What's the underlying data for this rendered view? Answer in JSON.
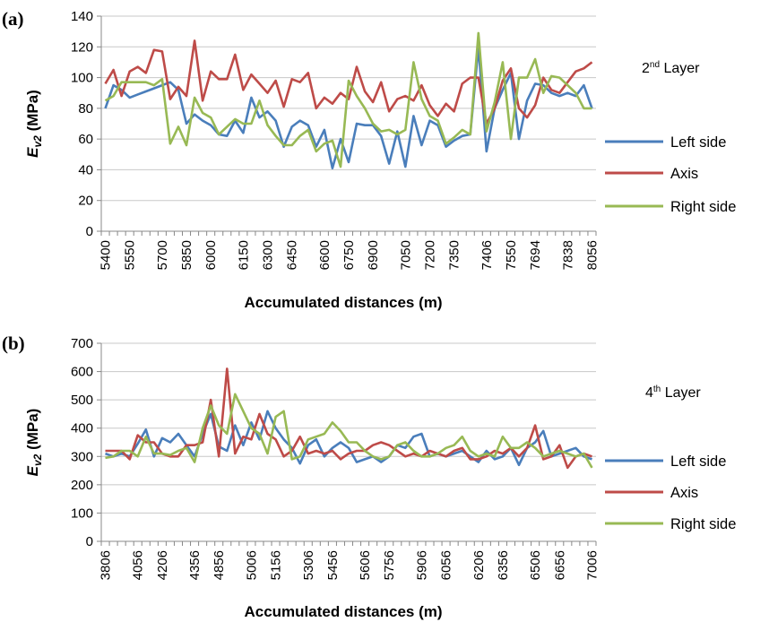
{
  "colors": {
    "left": "#4a7ebb",
    "axis": "#be4b48",
    "right": "#98b954",
    "grid": "#c8c8c8"
  },
  "chart_data": [
    {
      "type": "line",
      "panel": "(a)",
      "annotation": {
        "pre": "2",
        "sup": "nd",
        "post": " Layer"
      },
      "xlabel": "Accumulated distances (m)",
      "ylabel": {
        "main": "E",
        "sub": "v2",
        "unit": " (MPa)"
      },
      "ylim": [
        0,
        140
      ],
      "yticks": [
        "0",
        "20",
        "40",
        "60",
        "80",
        "100",
        "120",
        "140"
      ],
      "n_points": 61,
      "x_tick_labels": [
        "5400",
        "5550",
        "5700",
        "5850",
        "6000",
        "6150",
        "6300",
        "6450",
        "6600",
        "6750",
        "6900",
        "7050",
        "7200",
        "7350",
        "7406",
        "7550",
        "7694",
        "7838",
        "8056"
      ],
      "legend": [
        "Left side",
        "Axis",
        "Right side"
      ],
      "grid": true,
      "series": [
        {
          "name": "Left side",
          "values": [
            80,
            95,
            92,
            87,
            89,
            91,
            93,
            95,
            97,
            92,
            70,
            76,
            72,
            69,
            63,
            62,
            72,
            64,
            87,
            74,
            78,
            72,
            55,
            68,
            72,
            69,
            55,
            66,
            41,
            60,
            45,
            70,
            69,
            69,
            62,
            44,
            65,
            42,
            75,
            56,
            72,
            69,
            55,
            59,
            62,
            63,
            120,
            52,
            80,
            92,
            103,
            60,
            85,
            96,
            95,
            90,
            88,
            90,
            88,
            95,
            80
          ]
        },
        {
          "name": "Axis",
          "values": [
            96,
            105,
            88,
            104,
            107,
            103,
            118,
            117,
            86,
            94,
            88,
            124,
            85,
            104,
            99,
            99,
            115,
            92,
            102,
            96,
            90,
            98,
            81,
            99,
            97,
            103,
            80,
            87,
            83,
            90,
            86,
            107,
            91,
            84,
            97,
            78,
            86,
            88,
            85,
            95,
            82,
            75,
            83,
            78,
            96,
            100,
            100,
            70,
            80,
            98,
            106,
            80,
            74,
            82,
            100,
            92,
            90,
            97,
            104,
            106,
            110
          ]
        },
        {
          "name": "Right side",
          "values": [
            85,
            88,
            97,
            97,
            97,
            97,
            95,
            99,
            57,
            68,
            56,
            87,
            77,
            74,
            63,
            68,
            73,
            70,
            70,
            85,
            69,
            62,
            56,
            56,
            62,
            66,
            52,
            57,
            59,
            42,
            98,
            88,
            80,
            70,
            65,
            66,
            63,
            66,
            110,
            86,
            75,
            72,
            57,
            61,
            66,
            63,
            129,
            65,
            84,
            110,
            60,
            100,
            100,
            112,
            90,
            101,
            100,
            95,
            90,
            80,
            80
          ]
        }
      ]
    },
    {
      "type": "line",
      "panel": "(b)",
      "annotation": {
        "pre": "4",
        "sup": "th",
        "post": " Layer"
      },
      "xlabel": "Accumulated distances (m)",
      "ylabel": {
        "main": "E",
        "sub": "v2",
        "unit": " (MPa)"
      },
      "ylim": [
        0,
        700
      ],
      "yticks": [
        "0",
        "100",
        "200",
        "300",
        "400",
        "500",
        "600",
        "700"
      ],
      "n_points": 61,
      "x_tick_labels": [
        "3806",
        "4056",
        "4206",
        "4356",
        "4856",
        "5006",
        "5156",
        "5306",
        "5456",
        "5606",
        "5756",
        "5906",
        "6056",
        "6206",
        "6356",
        "6506",
        "6656",
        "7006"
      ],
      "legend": [
        "Left side",
        "Axis",
        "Right side"
      ],
      "grid": true,
      "series": [
        {
          "name": "Left side",
          "values": [
            310,
            300,
            310,
            300,
            345,
            395,
            300,
            365,
            350,
            380,
            340,
            300,
            380,
            450,
            335,
            320,
            410,
            340,
            420,
            360,
            460,
            400,
            360,
            330,
            275,
            340,
            360,
            300,
            330,
            350,
            330,
            280,
            290,
            300,
            280,
            300,
            340,
            330,
            370,
            380,
            300,
            310,
            300,
            310,
            320,
            300,
            280,
            320,
            290,
            300,
            330,
            270,
            330,
            350,
            390,
            300,
            310,
            320,
            330,
            300,
            290
          ]
        },
        {
          "name": "Axis",
          "values": [
            320,
            320,
            320,
            290,
            375,
            350,
            350,
            310,
            300,
            300,
            340,
            340,
            350,
            500,
            300,
            610,
            310,
            370,
            360,
            450,
            380,
            360,
            300,
            320,
            370,
            310,
            320,
            310,
            320,
            290,
            310,
            320,
            320,
            340,
            350,
            340,
            320,
            300,
            310,
            300,
            320,
            310,
            300,
            320,
            330,
            290,
            290,
            300,
            320,
            310,
            330,
            300,
            330,
            410,
            290,
            300,
            340,
            260,
            300,
            310,
            300
          ]
        },
        {
          "name": "Right side",
          "values": [
            295,
            300,
            320,
            320,
            300,
            370,
            310,
            310,
            305,
            320,
            330,
            280,
            400,
            480,
            410,
            380,
            520,
            460,
            400,
            380,
            310,
            440,
            460,
            290,
            300,
            360,
            370,
            380,
            420,
            390,
            350,
            350,
            320,
            300,
            290,
            300,
            340,
            350,
            320,
            300,
            300,
            310,
            330,
            340,
            370,
            320,
            300,
            310,
            300,
            370,
            330,
            330,
            350,
            330,
            300,
            310,
            320,
            310,
            300,
            310,
            260
          ]
        }
      ]
    }
  ]
}
